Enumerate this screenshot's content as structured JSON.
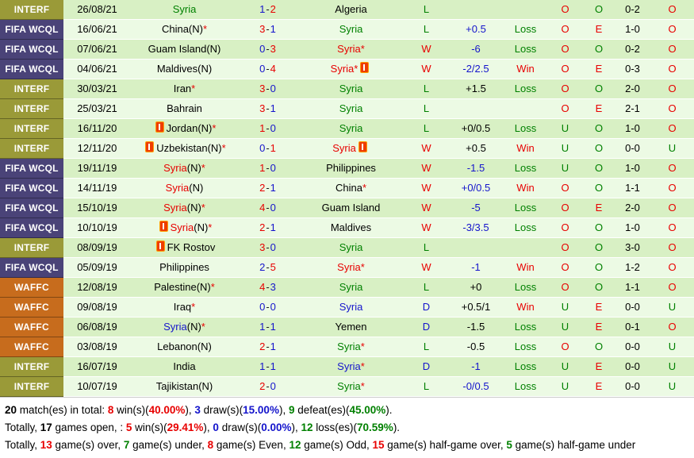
{
  "palette": {
    "red": "#e80000",
    "green": "#008000",
    "blue": "#1414cc",
    "black": "#000000"
  },
  "comp_colors": {
    "INTERF": "#9a9a38",
    "FIFA WCQL": "#4a4378",
    "WAFFC": "#c76c1d"
  },
  "row_colors": {
    "dark": "#d8f0c4",
    "light": "#ecfae4"
  },
  "rows": [
    {
      "comp": "INTERF",
      "date": "26/08/21",
      "home": {
        "name": "Syria",
        "color": "green"
      },
      "score": {
        "h": "1",
        "hc": "blue",
        "a": "2",
        "ac": "red"
      },
      "away": {
        "name": "Algeria",
        "color": "black"
      },
      "res": {
        "t": "L",
        "c": "green"
      },
      "hcap": {
        "t": "",
        "c": "black"
      },
      "wl": {
        "t": "",
        "c": "green"
      },
      "ou1": {
        "t": "O",
        "c": "red"
      },
      "oe": {
        "t": "O",
        "c": "green"
      },
      "ht": "0-2",
      "ou2": {
        "t": "O",
        "c": "red"
      }
    },
    {
      "comp": "FIFA WCQL",
      "date": "16/06/21",
      "home": {
        "name": "China",
        "suffix": "(N)",
        "star": true,
        "color": "black"
      },
      "score": {
        "h": "3",
        "hc": "red",
        "a": "1",
        "ac": "blue"
      },
      "away": {
        "name": "Syria",
        "color": "green"
      },
      "res": {
        "t": "L",
        "c": "green"
      },
      "hcap": {
        "t": "+0.5",
        "c": "blue"
      },
      "wl": {
        "t": "Loss",
        "c": "green"
      },
      "ou1": {
        "t": "O",
        "c": "red"
      },
      "oe": {
        "t": "E",
        "c": "red"
      },
      "ht": "1-0",
      "ou2": {
        "t": "O",
        "c": "red"
      }
    },
    {
      "comp": "FIFA WCQL",
      "date": "07/06/21",
      "home": {
        "name": "Guam Island",
        "suffix": "(N)",
        "color": "black"
      },
      "score": {
        "h": "0",
        "hc": "blue",
        "a": "3",
        "ac": "red"
      },
      "away": {
        "name": "Syria",
        "star": true,
        "color": "red"
      },
      "res": {
        "t": "W",
        "c": "red"
      },
      "hcap": {
        "t": "-6",
        "c": "blue"
      },
      "wl": {
        "t": "Loss",
        "c": "green"
      },
      "ou1": {
        "t": "O",
        "c": "red"
      },
      "oe": {
        "t": "O",
        "c": "green"
      },
      "ht": "0-2",
      "ou2": {
        "t": "O",
        "c": "red"
      }
    },
    {
      "comp": "FIFA WCQL",
      "date": "04/06/21",
      "home": {
        "name": "Maldives",
        "suffix": "(N)",
        "color": "black"
      },
      "score": {
        "h": "0",
        "hc": "blue",
        "a": "4",
        "ac": "red"
      },
      "away": {
        "name": "Syria",
        "star": true,
        "color": "red",
        "card": "after"
      },
      "res": {
        "t": "W",
        "c": "red"
      },
      "hcap": {
        "t": "-2/2.5",
        "c": "blue"
      },
      "wl": {
        "t": "Win",
        "c": "red"
      },
      "ou1": {
        "t": "O",
        "c": "red"
      },
      "oe": {
        "t": "E",
        "c": "red"
      },
      "ht": "0-3",
      "ou2": {
        "t": "O",
        "c": "red"
      }
    },
    {
      "comp": "INTERF",
      "date": "30/03/21",
      "home": {
        "name": "Iran",
        "star": true,
        "color": "black"
      },
      "score": {
        "h": "3",
        "hc": "red",
        "a": "0",
        "ac": "blue"
      },
      "away": {
        "name": "Syria",
        "color": "green"
      },
      "res": {
        "t": "L",
        "c": "green"
      },
      "hcap": {
        "t": "+1.5",
        "c": "black"
      },
      "wl": {
        "t": "Loss",
        "c": "green"
      },
      "ou1": {
        "t": "O",
        "c": "red"
      },
      "oe": {
        "t": "O",
        "c": "green"
      },
      "ht": "2-0",
      "ou2": {
        "t": "O",
        "c": "red"
      }
    },
    {
      "comp": "INTERF",
      "date": "25/03/21",
      "home": {
        "name": "Bahrain",
        "color": "black"
      },
      "score": {
        "h": "3",
        "hc": "red",
        "a": "1",
        "ac": "blue"
      },
      "away": {
        "name": "Syria",
        "color": "green"
      },
      "res": {
        "t": "L",
        "c": "green"
      },
      "hcap": {
        "t": "",
        "c": "black"
      },
      "wl": {
        "t": "",
        "c": "green"
      },
      "ou1": {
        "t": "O",
        "c": "red"
      },
      "oe": {
        "t": "E",
        "c": "red"
      },
      "ht": "2-1",
      "ou2": {
        "t": "O",
        "c": "red"
      }
    },
    {
      "comp": "INTERF",
      "date": "16/11/20",
      "home": {
        "name": "Jordan",
        "suffix": "(N)",
        "star": true,
        "color": "black",
        "card": "before"
      },
      "score": {
        "h": "1",
        "hc": "red",
        "a": "0",
        "ac": "blue"
      },
      "away": {
        "name": "Syria",
        "color": "green"
      },
      "res": {
        "t": "L",
        "c": "green"
      },
      "hcap": {
        "t": "+0/0.5",
        "c": "black"
      },
      "wl": {
        "t": "Loss",
        "c": "green"
      },
      "ou1": {
        "t": "U",
        "c": "green"
      },
      "oe": {
        "t": "O",
        "c": "green"
      },
      "ht": "1-0",
      "ou2": {
        "t": "O",
        "c": "red"
      }
    },
    {
      "comp": "INTERF",
      "date": "12/11/20",
      "home": {
        "name": "Uzbekistan",
        "suffix": "(N)",
        "star": true,
        "color": "black",
        "card": "before"
      },
      "score": {
        "h": "0",
        "hc": "blue",
        "a": "1",
        "ac": "red"
      },
      "away": {
        "name": "Syria",
        "color": "red",
        "card": "after"
      },
      "res": {
        "t": "W",
        "c": "red"
      },
      "hcap": {
        "t": "+0.5",
        "c": "black"
      },
      "wl": {
        "t": "Win",
        "c": "red"
      },
      "ou1": {
        "t": "U",
        "c": "green"
      },
      "oe": {
        "t": "O",
        "c": "green"
      },
      "ht": "0-0",
      "ou2": {
        "t": "U",
        "c": "green"
      }
    },
    {
      "comp": "FIFA WCQL",
      "date": "19/11/19",
      "home": {
        "name": "Syria",
        "suffix": "(N)",
        "star": true,
        "color": "red"
      },
      "score": {
        "h": "1",
        "hc": "red",
        "a": "0",
        "ac": "blue"
      },
      "away": {
        "name": "Philippines",
        "color": "black"
      },
      "res": {
        "t": "W",
        "c": "red"
      },
      "hcap": {
        "t": "-1.5",
        "c": "blue"
      },
      "wl": {
        "t": "Loss",
        "c": "green"
      },
      "ou1": {
        "t": "U",
        "c": "green"
      },
      "oe": {
        "t": "O",
        "c": "green"
      },
      "ht": "1-0",
      "ou2": {
        "t": "O",
        "c": "red"
      }
    },
    {
      "comp": "FIFA WCQL",
      "date": "14/11/19",
      "home": {
        "name": "Syria",
        "suffix": "(N)",
        "color": "red"
      },
      "score": {
        "h": "2",
        "hc": "red",
        "a": "1",
        "ac": "blue"
      },
      "away": {
        "name": "China",
        "star": true,
        "color": "black"
      },
      "res": {
        "t": "W",
        "c": "red"
      },
      "hcap": {
        "t": "+0/0.5",
        "c": "blue"
      },
      "wl": {
        "t": "Win",
        "c": "red"
      },
      "ou1": {
        "t": "O",
        "c": "red"
      },
      "oe": {
        "t": "O",
        "c": "green"
      },
      "ht": "1-1",
      "ou2": {
        "t": "O",
        "c": "red"
      }
    },
    {
      "comp": "FIFA WCQL",
      "date": "15/10/19",
      "home": {
        "name": "Syria",
        "suffix": "(N)",
        "star": true,
        "color": "red"
      },
      "score": {
        "h": "4",
        "hc": "red",
        "a": "0",
        "ac": "blue"
      },
      "away": {
        "name": "Guam Island",
        "color": "black"
      },
      "res": {
        "t": "W",
        "c": "red"
      },
      "hcap": {
        "t": "-5",
        "c": "blue"
      },
      "wl": {
        "t": "Loss",
        "c": "green"
      },
      "ou1": {
        "t": "O",
        "c": "red"
      },
      "oe": {
        "t": "E",
        "c": "red"
      },
      "ht": "2-0",
      "ou2": {
        "t": "O",
        "c": "red"
      }
    },
    {
      "comp": "FIFA WCQL",
      "date": "10/10/19",
      "home": {
        "name": "Syria",
        "suffix": "(N)",
        "star": true,
        "color": "red",
        "card": "before"
      },
      "score": {
        "h": "2",
        "hc": "red",
        "a": "1",
        "ac": "blue"
      },
      "away": {
        "name": "Maldives",
        "color": "black"
      },
      "res": {
        "t": "W",
        "c": "red"
      },
      "hcap": {
        "t": "-3/3.5",
        "c": "blue"
      },
      "wl": {
        "t": "Loss",
        "c": "green"
      },
      "ou1": {
        "t": "O",
        "c": "red"
      },
      "oe": {
        "t": "O",
        "c": "green"
      },
      "ht": "1-0",
      "ou2": {
        "t": "O",
        "c": "red"
      }
    },
    {
      "comp": "INTERF",
      "date": "08/09/19",
      "home": {
        "name": "FK Rostov",
        "color": "black",
        "card": "before"
      },
      "score": {
        "h": "3",
        "hc": "red",
        "a": "0",
        "ac": "blue"
      },
      "away": {
        "name": "Syria",
        "color": "green"
      },
      "res": {
        "t": "L",
        "c": "green"
      },
      "hcap": {
        "t": "",
        "c": "black"
      },
      "wl": {
        "t": "",
        "c": "green"
      },
      "ou1": {
        "t": "O",
        "c": "red"
      },
      "oe": {
        "t": "O",
        "c": "green"
      },
      "ht": "3-0",
      "ou2": {
        "t": "O",
        "c": "red"
      }
    },
    {
      "comp": "FIFA WCQL",
      "date": "05/09/19",
      "home": {
        "name": "Philippines",
        "color": "black"
      },
      "score": {
        "h": "2",
        "hc": "blue",
        "a": "5",
        "ac": "red"
      },
      "away": {
        "name": "Syria",
        "star": true,
        "color": "red"
      },
      "res": {
        "t": "W",
        "c": "red"
      },
      "hcap": {
        "t": "-1",
        "c": "blue"
      },
      "wl": {
        "t": "Win",
        "c": "red"
      },
      "ou1": {
        "t": "O",
        "c": "red"
      },
      "oe": {
        "t": "O",
        "c": "green"
      },
      "ht": "1-2",
      "ou2": {
        "t": "O",
        "c": "red"
      }
    },
    {
      "comp": "WAFFC",
      "date": "12/08/19",
      "home": {
        "name": "Palestine",
        "suffix": "(N)",
        "star": true,
        "color": "black"
      },
      "score": {
        "h": "4",
        "hc": "red",
        "a": "3",
        "ac": "blue"
      },
      "away": {
        "name": "Syria",
        "color": "green"
      },
      "res": {
        "t": "L",
        "c": "green"
      },
      "hcap": {
        "t": "+0",
        "c": "black"
      },
      "wl": {
        "t": "Loss",
        "c": "green"
      },
      "ou1": {
        "t": "O",
        "c": "red"
      },
      "oe": {
        "t": "O",
        "c": "green"
      },
      "ht": "1-1",
      "ou2": {
        "t": "O",
        "c": "red"
      }
    },
    {
      "comp": "WAFFC",
      "date": "09/08/19",
      "home": {
        "name": "Iraq",
        "star": true,
        "color": "black"
      },
      "score": {
        "h": "0",
        "hc": "blue",
        "a": "0",
        "ac": "blue"
      },
      "away": {
        "name": "Syria",
        "color": "blue"
      },
      "res": {
        "t": "D",
        "c": "blue"
      },
      "hcap": {
        "t": "+0.5/1",
        "c": "black"
      },
      "wl": {
        "t": "Win",
        "c": "red"
      },
      "ou1": {
        "t": "U",
        "c": "green"
      },
      "oe": {
        "t": "E",
        "c": "red"
      },
      "ht": "0-0",
      "ou2": {
        "t": "U",
        "c": "green"
      }
    },
    {
      "comp": "WAFFC",
      "date": "06/08/19",
      "home": {
        "name": "Syria",
        "suffix": "(N)",
        "star": true,
        "color": "blue"
      },
      "score": {
        "h": "1",
        "hc": "blue",
        "a": "1",
        "ac": "blue"
      },
      "away": {
        "name": "Yemen",
        "color": "black"
      },
      "res": {
        "t": "D",
        "c": "blue"
      },
      "hcap": {
        "t": "-1.5",
        "c": "black"
      },
      "wl": {
        "t": "Loss",
        "c": "green"
      },
      "ou1": {
        "t": "U",
        "c": "green"
      },
      "oe": {
        "t": "E",
        "c": "red"
      },
      "ht": "0-1",
      "ou2": {
        "t": "O",
        "c": "red"
      }
    },
    {
      "comp": "WAFFC",
      "date": "03/08/19",
      "home": {
        "name": "Lebanon",
        "suffix": "(N)",
        "color": "black"
      },
      "score": {
        "h": "2",
        "hc": "red",
        "a": "1",
        "ac": "blue"
      },
      "away": {
        "name": "Syria",
        "star": true,
        "color": "green"
      },
      "res": {
        "t": "L",
        "c": "green"
      },
      "hcap": {
        "t": "-0.5",
        "c": "black"
      },
      "wl": {
        "t": "Loss",
        "c": "green"
      },
      "ou1": {
        "t": "O",
        "c": "red"
      },
      "oe": {
        "t": "O",
        "c": "green"
      },
      "ht": "0-0",
      "ou2": {
        "t": "U",
        "c": "green"
      }
    },
    {
      "comp": "INTERF",
      "date": "16/07/19",
      "home": {
        "name": "India",
        "color": "black"
      },
      "score": {
        "h": "1",
        "hc": "blue",
        "a": "1",
        "ac": "blue"
      },
      "away": {
        "name": "Syria",
        "star": true,
        "color": "blue"
      },
      "res": {
        "t": "D",
        "c": "blue"
      },
      "hcap": {
        "t": "-1",
        "c": "blue"
      },
      "wl": {
        "t": "Loss",
        "c": "green"
      },
      "ou1": {
        "t": "U",
        "c": "green"
      },
      "oe": {
        "t": "E",
        "c": "red"
      },
      "ht": "0-0",
      "ou2": {
        "t": "U",
        "c": "green"
      }
    },
    {
      "comp": "INTERF",
      "date": "10/07/19",
      "home": {
        "name": "Tajikistan",
        "suffix": "(N)",
        "color": "black"
      },
      "score": {
        "h": "2",
        "hc": "red",
        "a": "0",
        "ac": "blue"
      },
      "away": {
        "name": "Syria",
        "star": true,
        "color": "green"
      },
      "res": {
        "t": "L",
        "c": "green"
      },
      "hcap": {
        "t": "-0/0.5",
        "c": "blue"
      },
      "wl": {
        "t": "Loss",
        "c": "green"
      },
      "ou1": {
        "t": "U",
        "c": "green"
      },
      "oe": {
        "t": "E",
        "c": "red"
      },
      "ht": "0-0",
      "ou2": {
        "t": "U",
        "c": "green"
      }
    }
  ],
  "summary_lines": [
    [
      {
        "t": "20",
        "b": true
      },
      {
        "t": " match(es) in total: "
      },
      {
        "t": "8",
        "b": true,
        "c": "red"
      },
      {
        "t": " win(s)("
      },
      {
        "t": "40.00%",
        "b": true,
        "c": "red"
      },
      {
        "t": "), "
      },
      {
        "t": "3",
        "b": true,
        "c": "blue"
      },
      {
        "t": " draw(s)("
      },
      {
        "t": "15.00%",
        "b": true,
        "c": "blue"
      },
      {
        "t": "), "
      },
      {
        "t": "9",
        "b": true,
        "c": "green"
      },
      {
        "t": " defeat(es)("
      },
      {
        "t": "45.00%",
        "b": true,
        "c": "green"
      },
      {
        "t": ")."
      }
    ],
    [
      {
        "t": "Totally, "
      },
      {
        "t": "17",
        "b": true
      },
      {
        "t": " games open, : "
      },
      {
        "t": "5",
        "b": true,
        "c": "red"
      },
      {
        "t": " win(s)("
      },
      {
        "t": "29.41%",
        "b": true,
        "c": "red"
      },
      {
        "t": "), "
      },
      {
        "t": "0",
        "b": true,
        "c": "blue"
      },
      {
        "t": " draw(s)("
      },
      {
        "t": "0.00%",
        "b": true,
        "c": "blue"
      },
      {
        "t": "), "
      },
      {
        "t": "12",
        "b": true,
        "c": "green"
      },
      {
        "t": " loss(es)("
      },
      {
        "t": "70.59%",
        "b": true,
        "c": "green"
      },
      {
        "t": ")."
      }
    ],
    [
      {
        "t": "Totally, "
      },
      {
        "t": "13",
        "b": true,
        "c": "red"
      },
      {
        "t": " game(s) over, "
      },
      {
        "t": "7",
        "b": true,
        "c": "green"
      },
      {
        "t": " game(s) under, "
      },
      {
        "t": "8",
        "b": true,
        "c": "red"
      },
      {
        "t": " game(s) Even, "
      },
      {
        "t": "12",
        "b": true,
        "c": "green"
      },
      {
        "t": " game(s) Odd, "
      },
      {
        "t": "15",
        "b": true,
        "c": "red"
      },
      {
        "t": " game(s) half-game over, "
      },
      {
        "t": "5",
        "b": true,
        "c": "green"
      },
      {
        "t": " game(s) half-game under"
      }
    ]
  ]
}
